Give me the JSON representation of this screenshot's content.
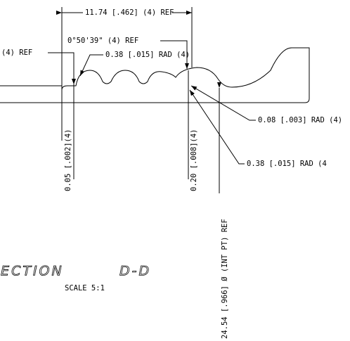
{
  "dimensions": {
    "overall_length": "11.74 [.462] (4) REF",
    "angle": "0°50'39\" (4) REF",
    "rad_top": "0.38 [.015] RAD (4)",
    "ref_left": "(4) REF",
    "rad_small": "0.08 [.003] RAD (4)",
    "rad_right": "0.38 [.015] RAD (4",
    "height_small": "0.05 [.002](4)",
    "height_large": "0.20 [.008](4)",
    "diameter": "24.54 [.966] Ø (INT PT) REF"
  },
  "view": {
    "title": "SECTION",
    "label": "D-D",
    "scale": "SCALE 5:1"
  }
}
